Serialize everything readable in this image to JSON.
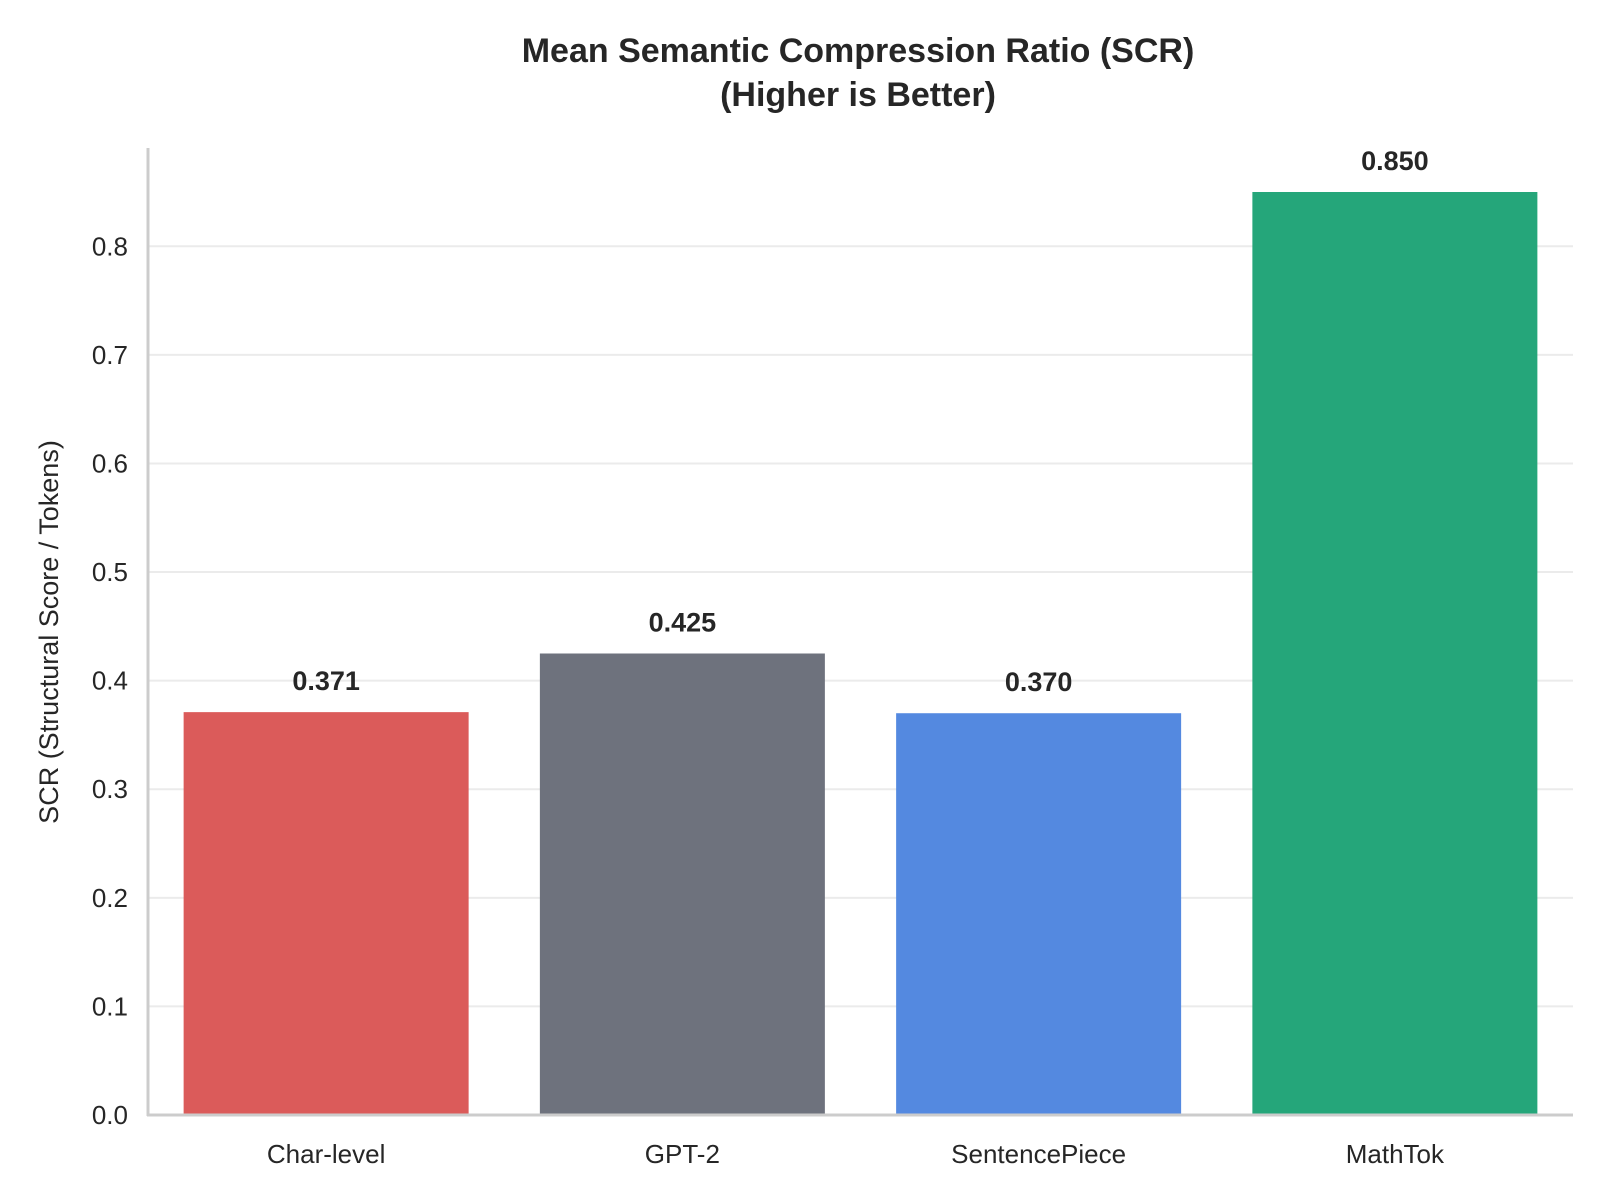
{
  "chart_data": {
    "type": "bar",
    "title": "Mean Semantic Compression Ratio (SCR)",
    "subtitle": "(Higher is Better)",
    "xlabel": "",
    "ylabel": "SCR (Structural Score / Tokens)",
    "categories": [
      "Char-level",
      "GPT-2",
      "SentencePiece",
      "MathTok"
    ],
    "values": [
      0.371,
      0.425,
      0.37,
      0.85
    ],
    "data_labels": [
      "0.371",
      "0.425",
      "0.370",
      "0.850"
    ],
    "colors": [
      "#db5b5a",
      "#6e727d",
      "#5489e0",
      "#25a67a"
    ],
    "ylim": [
      0,
      0.9
    ],
    "yticks": [
      0.0,
      0.1,
      0.2,
      0.3,
      0.4,
      0.5,
      0.6,
      0.7,
      0.8
    ],
    "ytick_labels": [
      "0.0",
      "0.1",
      "0.2",
      "0.3",
      "0.4",
      "0.5",
      "0.6",
      "0.7",
      "0.8"
    ],
    "grid": "horizontal",
    "legend": "none"
  }
}
